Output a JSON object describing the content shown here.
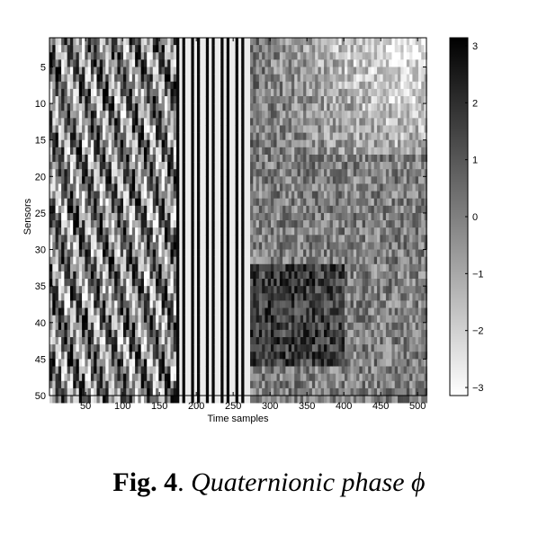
{
  "chart_data": {
    "type": "heatmap",
    "xlabel": "Time samples",
    "ylabel": "Sensors",
    "xlim": [
      1,
      512
    ],
    "ylim": [
      1,
      50
    ],
    "x_ticks": [
      "50",
      "100",
      "150",
      "200",
      "250",
      "300",
      "350",
      "400",
      "450",
      "500"
    ],
    "y_ticks": [
      "5",
      "10",
      "15",
      "20",
      "25",
      "30",
      "35",
      "40",
      "45",
      "50"
    ],
    "y_axis_direction": "top-to-bottom",
    "colorbar": {
      "range": [
        -3.1416,
        3.1416
      ],
      "ticks": [
        "3",
        "2",
        "1",
        "0",
        "−1",
        "−2",
        "−3"
      ],
      "colormap": "gray",
      "min_color": "#ffffff",
      "max_color": "#000000"
    },
    "regions": [
      {
        "x": [
          1,
          170
        ],
        "y": [
          1,
          50
        ],
        "pattern": "dense diagonal phase stripes, high contrast"
      },
      {
        "x": [
          170,
          270
        ],
        "y": [
          1,
          50
        ],
        "pattern": "vertical alternating black and white stripes"
      },
      {
        "x": [
          270,
          512
        ],
        "y": [
          1,
          17
        ],
        "pattern": "dark noisy texture fading to light grey at upper right"
      },
      {
        "x": [
          270,
          512
        ],
        "y": [
          17,
          50
        ],
        "pattern": "medium grey noisy texture with dark patch near sensors 32-45, x 280-400"
      }
    ]
  },
  "caption": {
    "label": "Fig. 4",
    "separator": ". ",
    "text": "Quaternionic phase ϕ"
  }
}
